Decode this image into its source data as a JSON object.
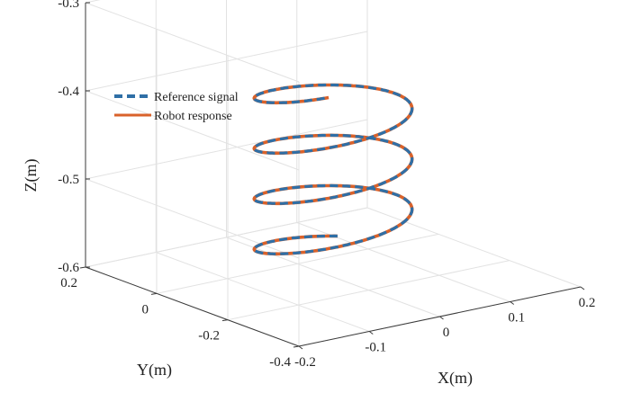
{
  "chart_data": {
    "type": "line3d",
    "xlabel": "X(m)",
    "ylabel": "Y(m)",
    "zlabel": "Z(m)",
    "xlim": [
      -0.2,
      0.2
    ],
    "ylim": [
      -0.4,
      0.2
    ],
    "zlim": [
      -0.6,
      -0.3
    ],
    "x_ticks": [
      "-0.2",
      "-0.1",
      "0",
      "0.1",
      "0.2"
    ],
    "y_ticks": [
      "-0.4",
      "-0.2",
      "0",
      "0.2"
    ],
    "z_ticks": [
      "-0.6",
      "-0.5",
      "-0.4",
      "-0.3"
    ],
    "grid": true,
    "legend_position": "top-left",
    "helix": {
      "center_x": 0.0,
      "center_y": -0.1,
      "radius": 0.1,
      "z_start": -0.575,
      "z_end": -0.375,
      "turns": 3.5,
      "start_angle_deg": 60
    },
    "series": [
      {
        "name": "Reference signal",
        "style": "dashed",
        "color": "#2f6fa6",
        "x": [],
        "y": [],
        "z": []
      },
      {
        "name": "Robot response",
        "style": "solid",
        "color": "#d9622b",
        "x": [],
        "y": [],
        "z": []
      }
    ]
  }
}
